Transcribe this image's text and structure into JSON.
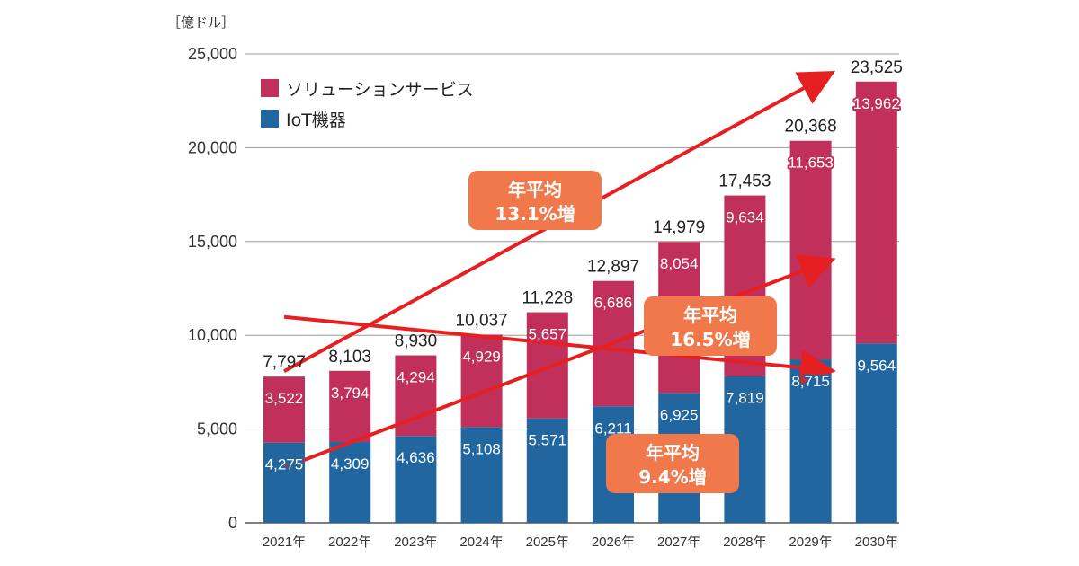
{
  "chart_data": {
    "type": "bar",
    "stacked": true,
    "unit_label": "［億ドル］",
    "categories": [
      "2021年",
      "2022年",
      "2023年",
      "2024年",
      "2025年",
      "2026年",
      "2027年",
      "2028年",
      "2029年",
      "2030年"
    ],
    "series": [
      {
        "name": "IoT機器",
        "color": "#2266a0",
        "values": [
          4275,
          4309,
          4636,
          5108,
          5571,
          6211,
          6925,
          7819,
          8715,
          9564
        ]
      },
      {
        "name": "ソリューションサービス",
        "color": "#c0305a",
        "values": [
          3522,
          3794,
          4294,
          4929,
          5657,
          6686,
          8054,
          9634,
          11653,
          13962
        ]
      }
    ],
    "totals": [
      7797,
      8103,
      8930,
      10037,
      11228,
      12897,
      14979,
      17453,
      20368,
      23525
    ],
    "ylim": [
      0,
      25000
    ],
    "yticks": [
      "0",
      "5,000",
      "10,000",
      "15,000",
      "20,000",
      "25,000"
    ],
    "grid": true,
    "legend": "top-left",
    "annotations": [
      {
        "line1": "年平均",
        "line2": "13.1%増",
        "applies_to": "total"
      },
      {
        "line1": "年平均",
        "line2": "16.5%増",
        "applies_to": "ソリューションサービス"
      },
      {
        "line1": "年平均",
        "line2": "9.4%増",
        "applies_to": "IoT機器"
      }
    ],
    "arrow_color": "#e62020",
    "callout_color": "#f0784a"
  }
}
